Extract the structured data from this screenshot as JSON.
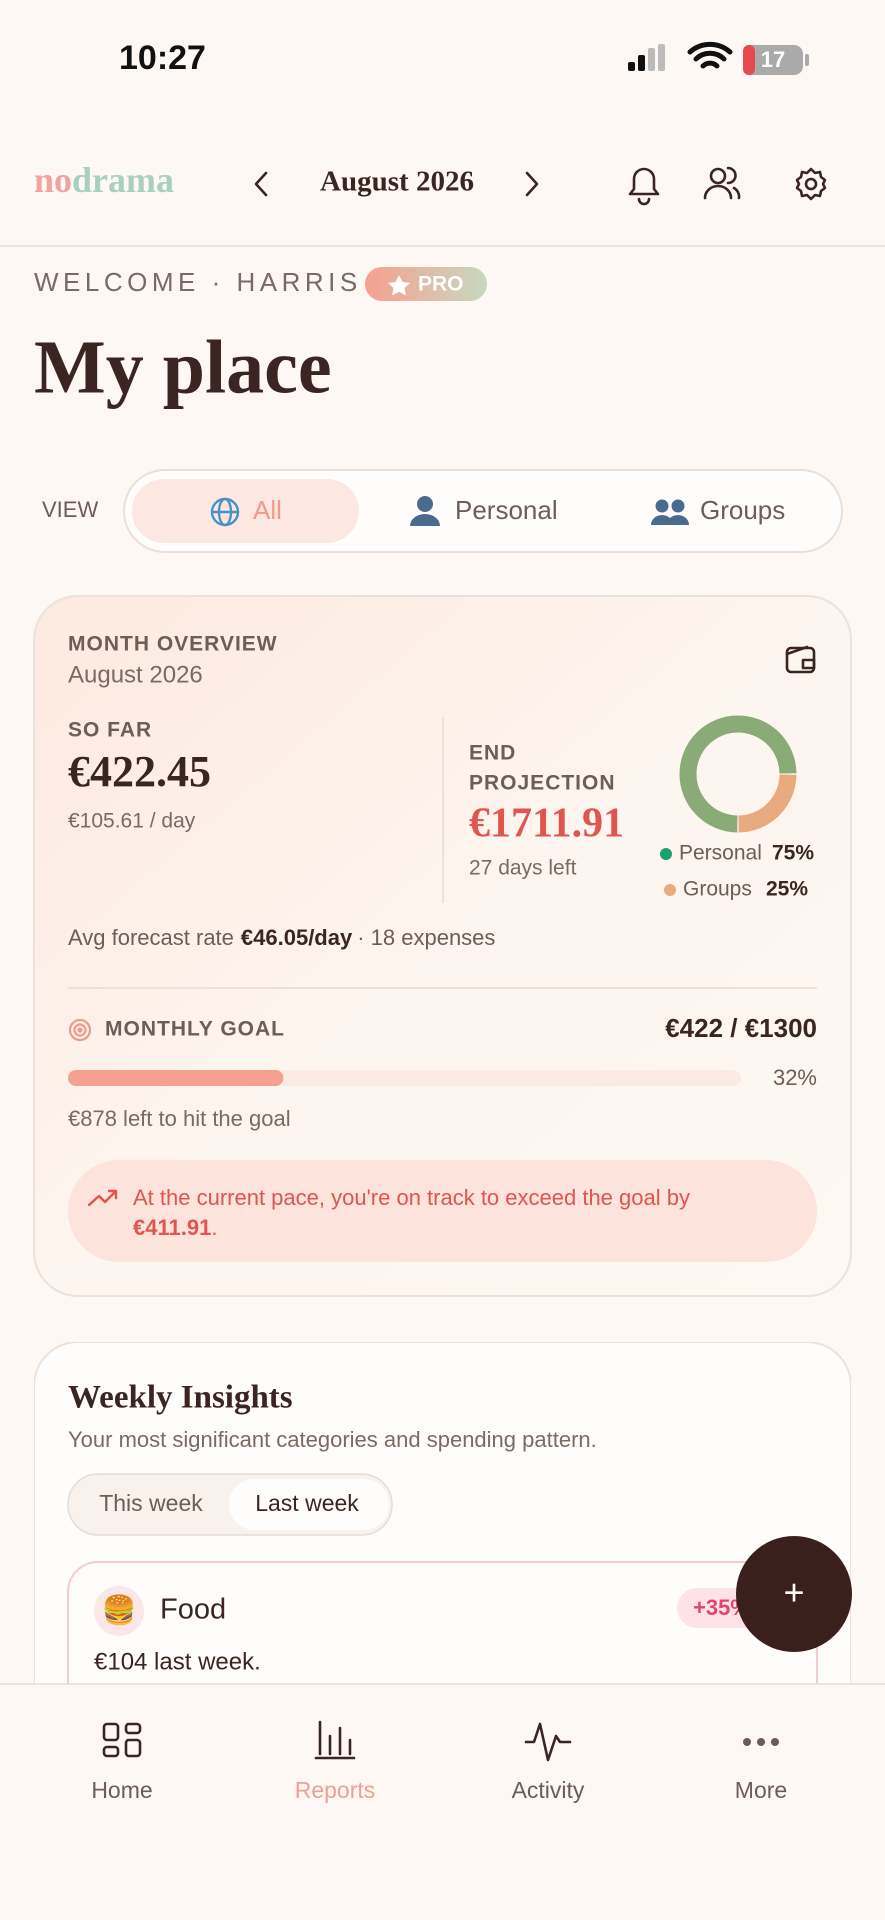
{
  "status": {
    "time": "10:27",
    "battery": "17"
  },
  "header": {
    "logo_a": "no",
    "logo_b": "drama",
    "month": "August 2026"
  },
  "welcome": {
    "label": "WELCOME · HARRIS",
    "badge": "PRO",
    "title": "My place"
  },
  "view": {
    "label": "VIEW",
    "options": [
      "All",
      "Personal",
      "Groups"
    ]
  },
  "overview": {
    "label": "MONTH OVERVIEW",
    "month": "August 2026",
    "so_far_label": "SO FAR",
    "so_far": "€422.45",
    "per_day": "€105.61 / day",
    "end_label_1": "END",
    "end_label_2": "PROJECTION",
    "end": "€1711.91",
    "days_left": "27 days left",
    "split": [
      {
        "name": "Personal",
        "value": 75,
        "label": "75%",
        "color": "#8aaa78",
        "dot": "#1f9e6e"
      },
      {
        "name": "Groups",
        "value": 25,
        "label": "25%",
        "color": "#e8ab80",
        "dot": "#e8ab80"
      }
    ],
    "avg_prefix": "Avg forecast rate",
    "avg_rate": "€46.05/day",
    "avg_suffix": "· 18 expenses"
  },
  "goal": {
    "label": "MONTHLY GOAL",
    "amount": "€422 / €1300",
    "percent": 32,
    "percent_label": "32%",
    "left": "€878 left to hit the goal",
    "alert_1": "At the current pace, you're on track to exceed the goal by",
    "alert_amount": "€411.91",
    "alert_end": "."
  },
  "insights": {
    "title": "Weekly Insights",
    "subtitle": "Your most significant categories and spending pattern.",
    "tabs": [
      "This week",
      "Last week"
    ],
    "card": {
      "emoji": "🍔",
      "name": "Food",
      "change": "+35%",
      "summary": "€104 last week."
    }
  },
  "fab": "+",
  "nav": [
    "Home",
    "Reports",
    "Activity",
    "More"
  ]
}
